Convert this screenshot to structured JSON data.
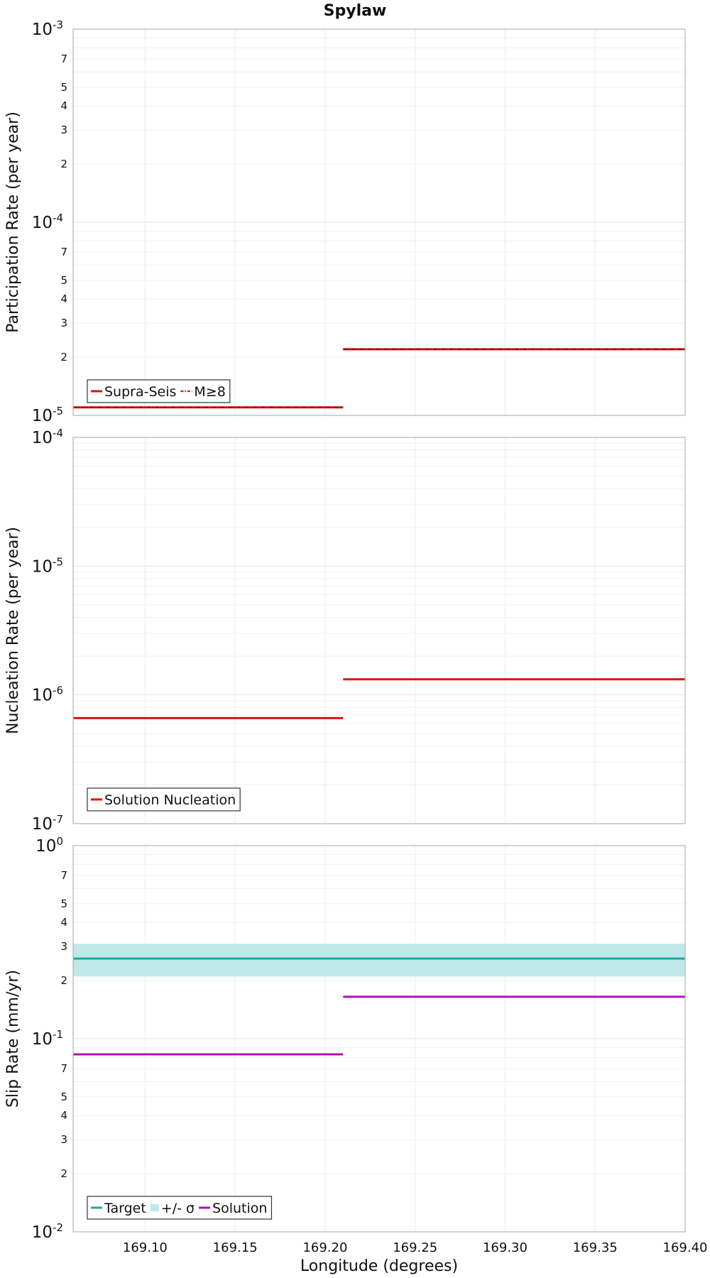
{
  "figure": {
    "title": "Spylaw",
    "xlabel": "Longitude (degrees)"
  },
  "chart_data": [
    {
      "type": "line",
      "ylabel": "Participation Rate (per year)",
      "yscale": "log",
      "ylim": [
        1e-05,
        0.001
      ],
      "xlim": [
        169.06,
        169.4
      ],
      "grid": true,
      "decade_ticks": [
        {
          "label": "10",
          "exp": "-5"
        },
        {
          "label": "10",
          "exp": "-4"
        },
        {
          "label": "10",
          "exp": "-3"
        }
      ],
      "minor_ticks": [
        "2",
        "3",
        "4",
        "5",
        "7"
      ],
      "legend": {
        "placement": "bottom-left",
        "entries": [
          {
            "name": "Supra-Seis",
            "style": "solid",
            "color": "#e0120b"
          },
          {
            "name": "M≥8",
            "style": "dashdot",
            "color": "#e0120b"
          }
        ]
      },
      "series": [
        {
          "name": "Supra-Seis",
          "color": "#e0120b",
          "style": "solid",
          "segments": [
            {
              "x": [
                169.06,
                169.21
              ],
              "y": 1.1e-05
            },
            {
              "x": [
                169.21,
                169.4
              ],
              "y": 2.2e-05
            }
          ]
        },
        {
          "name": "M≥8",
          "color": "#e0120b",
          "style": "dashdot",
          "segments": [
            {
              "x": [
                169.06,
                169.21
              ],
              "y": 1.1e-05
            },
            {
              "x": [
                169.21,
                169.4
              ],
              "y": 2.2e-05
            }
          ]
        }
      ]
    },
    {
      "type": "line",
      "ylabel": "Nucleation Rate (per year)",
      "yscale": "log",
      "ylim": [
        1e-07,
        0.0001
      ],
      "xlim": [
        169.06,
        169.4
      ],
      "grid": true,
      "decade_ticks": [
        {
          "label": "10",
          "exp": "-7"
        },
        {
          "label": "10",
          "exp": "-6"
        },
        {
          "label": "10",
          "exp": "-5"
        },
        {
          "label": "10",
          "exp": "-4"
        }
      ],
      "minor_ticks": [],
      "legend": {
        "placement": "bottom-left",
        "entries": [
          {
            "name": "Solution Nucleation",
            "style": "solid",
            "color": "#e0120b"
          }
        ]
      },
      "series": [
        {
          "name": "Solution Nucleation",
          "color": "#e0120b",
          "style": "solid",
          "segments": [
            {
              "x": [
                169.06,
                169.21
              ],
              "y": 6.6e-07
            },
            {
              "x": [
                169.21,
                169.4
              ],
              "y": 1.32e-06
            }
          ]
        }
      ]
    },
    {
      "type": "line",
      "ylabel": "Slip Rate (mm/yr)",
      "yscale": "log",
      "ylim": [
        0.01,
        1
      ],
      "xlim": [
        169.06,
        169.4
      ],
      "grid": true,
      "decade_ticks": [
        {
          "label": "10",
          "exp": "-2"
        },
        {
          "label": "10",
          "exp": "-1"
        },
        {
          "label": "10",
          "exp": "0"
        }
      ],
      "minor_ticks": [
        "2",
        "3",
        "4",
        "5",
        "7"
      ],
      "legend": {
        "placement": "bottom-left",
        "entries": [
          {
            "name": "Target",
            "style": "solid",
            "color": "#1aa8a0"
          },
          {
            "name": "+/- σ",
            "style": "band",
            "color": "#bfe9e6"
          },
          {
            "name": "Solution",
            "style": "solid",
            "color": "#b010b8"
          }
        ]
      },
      "bands": [
        {
          "name": "+/- σ",
          "color": "#bfe9e6",
          "x": [
            169.06,
            169.4
          ],
          "y_low": 0.21,
          "y_high": 0.31
        }
      ],
      "series": [
        {
          "name": "Target",
          "color": "#1aa8a0",
          "style": "solid",
          "segments": [
            {
              "x": [
                169.06,
                169.4
              ],
              "y": 0.26
            }
          ]
        },
        {
          "name": "Solution",
          "color": "#b010b8",
          "style": "solid",
          "segments": [
            {
              "x": [
                169.06,
                169.21
              ],
              "y": 0.083
            },
            {
              "x": [
                169.21,
                169.4
              ],
              "y": 0.165
            }
          ]
        }
      ]
    }
  ],
  "x_ticks": [
    "169.10",
    "169.15",
    "169.20",
    "169.25",
    "169.30",
    "169.35",
    "169.40"
  ],
  "x_tick_values": [
    169.1,
    169.15,
    169.2,
    169.25,
    169.3,
    169.35,
    169.4
  ]
}
